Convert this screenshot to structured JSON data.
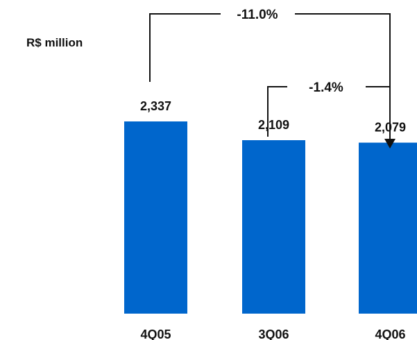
{
  "chart_data": {
    "type": "bar",
    "ylabel": "R$ million",
    "categories": [
      "4Q05",
      "3Q06",
      "4Q06"
    ],
    "values": [
      2337,
      2109,
      2079
    ],
    "value_labels": [
      "2,337",
      "2,109",
      "2,079"
    ],
    "bar_color": "#0066CC",
    "ylim": [
      0,
      2500
    ],
    "grid": false,
    "annotations": [
      {
        "label": "-11.0%",
        "from": "4Q05",
        "to": "4Q06"
      },
      {
        "label": "-1.4%",
        "from": "3Q06",
        "to": "4Q06"
      }
    ]
  }
}
